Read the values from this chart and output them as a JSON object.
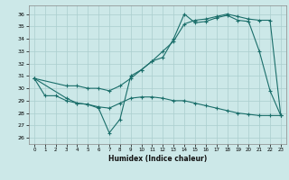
{
  "xlabel": "Humidex (Indice chaleur)",
  "bg_color": "#cce8e8",
  "grid_color": "#aacece",
  "line_color": "#1a6e6a",
  "xlim": [
    -0.5,
    23.5
  ],
  "ylim": [
    25.5,
    36.7
  ],
  "yticks": [
    26,
    27,
    28,
    29,
    30,
    31,
    32,
    33,
    34,
    35,
    36
  ],
  "xticks": [
    0,
    1,
    2,
    3,
    4,
    5,
    6,
    7,
    8,
    9,
    10,
    11,
    12,
    13,
    14,
    15,
    16,
    17,
    18,
    19,
    20,
    21,
    22,
    23
  ],
  "line1_x": [
    0,
    1,
    2,
    3,
    4,
    5,
    6,
    7,
    8,
    9,
    10,
    11,
    12,
    13,
    14,
    15,
    16,
    17,
    18,
    19,
    20,
    21,
    22,
    23
  ],
  "line1_y": [
    30.8,
    29.4,
    29.4,
    29.0,
    28.8,
    28.7,
    28.4,
    26.4,
    27.5,
    31.0,
    31.5,
    32.2,
    32.5,
    34.0,
    36.0,
    35.3,
    35.4,
    35.7,
    35.9,
    35.5,
    35.4,
    33.0,
    29.8,
    27.8
  ],
  "line2_x": [
    0,
    3,
    4,
    5,
    6,
    7,
    8,
    9,
    10,
    11,
    12,
    13,
    14,
    15,
    16,
    17,
    18,
    19,
    20,
    21,
    22,
    23
  ],
  "line2_y": [
    30.8,
    30.2,
    30.2,
    30.0,
    30.0,
    29.8,
    30.2,
    30.8,
    31.5,
    32.2,
    33.0,
    33.8,
    35.2,
    35.5,
    35.6,
    35.8,
    36.0,
    35.8,
    35.6,
    35.5,
    35.5,
    27.8
  ],
  "line3_x": [
    0,
    3,
    4,
    5,
    6,
    7,
    8,
    9,
    10,
    11,
    12,
    13,
    14,
    15,
    16,
    17,
    18,
    19,
    20,
    21,
    22,
    23
  ],
  "line3_y": [
    30.8,
    29.2,
    28.8,
    28.7,
    28.5,
    28.4,
    28.8,
    29.2,
    29.3,
    29.3,
    29.2,
    29.0,
    29.0,
    28.8,
    28.6,
    28.4,
    28.2,
    28.0,
    27.9,
    27.8,
    27.8,
    27.8
  ]
}
